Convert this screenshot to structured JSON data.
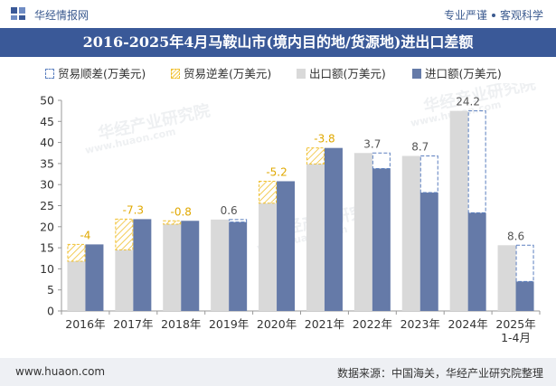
{
  "header": {
    "logo_text": "华经情报网",
    "slogan_left": "专业严谨",
    "slogan_right": "客观科学"
  },
  "footer": {
    "website": "www.huaon.com",
    "source": "数据来源：中国海关，华经产业研究院整理"
  },
  "watermarks": [
    "华经产业研究院",
    "www.huaon.com",
    "华经产业研究院",
    "www.huaon.com",
    "华经产业研究院",
    "www.huaon.com"
  ],
  "colors": {
    "title_bar": "#3a5998",
    "export": "#d9d9d9",
    "import": "#657aa8",
    "surplus_border": "#5b7fbf",
    "deficit_border": "#f0c030",
    "deficit_label": "#e0a800",
    "surplus_label": "#555555"
  },
  "chart_data": {
    "type": "bar",
    "title": "2016-2025年4月马鞍山市(境内目的地/货源地)进出口差额",
    "legend": [
      "贸易顺差(万美元)",
      "贸易逆差(万美元)",
      "出口额(万美元)",
      "进口额(万美元)"
    ],
    "legend_position": "top",
    "categories": [
      "2016年",
      "2017年",
      "2018年",
      "2019年",
      "2020年",
      "2021年",
      "2022年",
      "2023年",
      "2024年",
      "2025年\n1-4月"
    ],
    "series": [
      {
        "name": "出口额(万美元)",
        "values": [
          11.8,
          14.5,
          20.6,
          21.7,
          25.6,
          34.9,
          37.5,
          36.8,
          47.5,
          15.6
        ]
      },
      {
        "name": "进口额(万美元)",
        "values": [
          15.8,
          21.8,
          21.4,
          21.1,
          30.8,
          38.7,
          33.8,
          28.1,
          23.3,
          7.0
        ]
      }
    ],
    "balance": [
      -4,
      -7.3,
      -0.8,
      0.6,
      -5.2,
      -3.8,
      3.7,
      8.7,
      24.2,
      8.6
    ],
    "balance_labels": [
      "-4",
      "-7.3",
      "-0.8",
      "0.6",
      "-5.2",
      "-3.8",
      "3.7",
      "8.7",
      "24.2",
      "8.6"
    ],
    "ylim": [
      0,
      50
    ],
    "yticks": [
      0,
      5,
      10,
      15,
      20,
      25,
      30,
      35,
      40,
      45,
      50
    ],
    "grid": false
  }
}
